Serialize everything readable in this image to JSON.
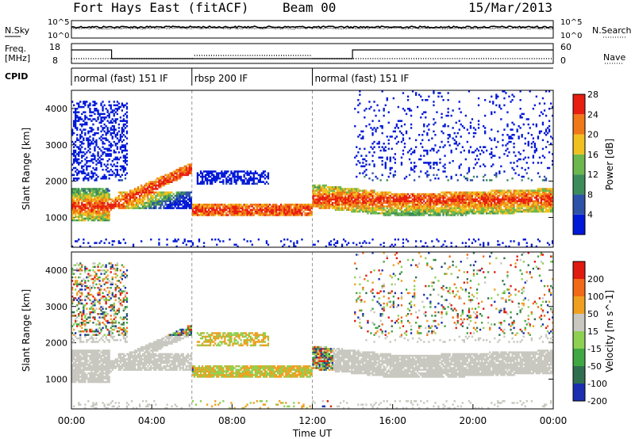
{
  "header": {
    "station": "Fort Hays East (fitACF)",
    "beam": "Beam 00",
    "date": "15/Mar/2013"
  },
  "noise_panel": {
    "left_label": "N.Sky",
    "right_label": "N.Search",
    "left_ticks": [
      "10^5",
      "10^0"
    ],
    "right_ticks": [
      "10^5",
      "10^0"
    ]
  },
  "freq_panel": {
    "left_label_line1": "Freq.",
    "left_label_line2": "[MHz]",
    "right_label": "Nave",
    "left_ticks": [
      "18",
      "8"
    ],
    "right_ticks": [
      "60",
      "0"
    ]
  },
  "cpid_panel": {
    "label": "CPID",
    "segments": [
      "normal (fast) 151 IF",
      "rbsp 200 IF",
      "normal (fast) 151 IF"
    ]
  },
  "chart_data": [
    {
      "type": "heatmap",
      "title": "Power",
      "ylabel": "Slant Range [km]",
      "ylim": [
        180,
        4500
      ],
      "yticks": [
        "1000",
        "2000",
        "3000",
        "4000"
      ],
      "colorbar_label": "Power [dB]",
      "colorbar_ticks": [
        "4",
        "8",
        "12",
        "16",
        "20",
        "24",
        "28"
      ],
      "colors": [
        "#0018d8",
        "#2e52a8",
        "#3c8c5a",
        "#6cb84c",
        "#f0c020",
        "#f07818",
        "#e81e10"
      ],
      "modes": [
        {
          "start_hour": 0.0,
          "end_hour": 6.0,
          "name": "normal (fast) 151 IF"
        },
        {
          "start_hour": 6.0,
          "end_hour": 12.0,
          "name": "rbsp 200 IF"
        },
        {
          "start_hour": 12.0,
          "end_hour": 24.0,
          "name": "normal (fast) 151 IF"
        }
      ]
    },
    {
      "type": "heatmap",
      "title": "Velocity",
      "ylabel": "Slant Range [km]",
      "ylim": [
        180,
        4500
      ],
      "yticks": [
        "1000",
        "2000",
        "3000",
        "4000"
      ],
      "colorbar_label": "Velocity [m s^-1]",
      "colorbar_ticks": [
        "200",
        "100",
        "50",
        "15",
        "-15",
        "-50",
        "-100",
        "-200"
      ],
      "colors": [
        "#1a2fb0",
        "#2f6f50",
        "#3fa842",
        "#8ed050",
        "#c8c8c0",
        "#f0a020",
        "#f06a18",
        "#e01a10"
      ]
    }
  ],
  "xaxis": {
    "label": "Time UT",
    "ticks": [
      "00:00",
      "04:00",
      "08:00",
      "12:00",
      "16:00",
      "20:00",
      "00:00"
    ]
  }
}
